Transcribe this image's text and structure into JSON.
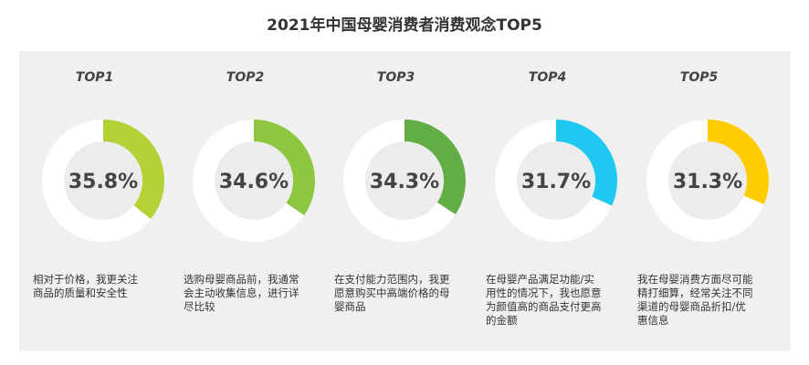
{
  "title": "2021年中国母婴消费者消费观念TOP5",
  "chart_data": {
    "type": "donut",
    "title": "2021年中国母婴消费者消费观念TOP5",
    "series": [
      {
        "label": "TOP1",
        "value": 35.8,
        "value_text": "35.8%",
        "color": "#b2d235",
        "description_lines": [
          "相对于价格，我更关注",
          "商品的质量和安全性"
        ]
      },
      {
        "label": "TOP2",
        "value": 34.6,
        "value_text": "34.6%",
        "color": "#8dc63f",
        "description_lines": [
          "选购母婴商品前，我通常",
          "会主动收集信息，进行详",
          "尽比较"
        ]
      },
      {
        "label": "TOP3",
        "value": 34.3,
        "value_text": "34.3%",
        "color": "#62ad46",
        "description_lines": [
          "在支付能力范围内，我更",
          "愿意购买中高端价格的母",
          "婴商品"
        ]
      },
      {
        "label": "TOP4",
        "value": 31.7,
        "value_text": "31.7%",
        "color": "#1fc8f0",
        "description_lines": [
          "在母婴产品满足功能/实",
          "用性的情况下，我也愿意",
          "为颜值高的商品支付更高",
          "的金额"
        ]
      },
      {
        "label": "TOP5",
        "value": 31.3,
        "value_text": "31.3%",
        "color": "#ffcc00",
        "description_lines": [
          "我在母婴消费方面尽可能",
          "精打细算，经常关注不同",
          "渠道的母婴商品折扣/优",
          "惠信息"
        ]
      }
    ],
    "ring_color": "#ffffff",
    "center_color": "#ececec",
    "value_color": "#444444"
  }
}
